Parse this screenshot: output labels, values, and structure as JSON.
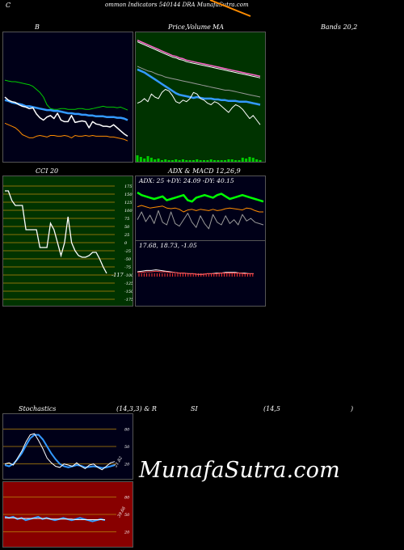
{
  "header": {
    "title_prefix": "C",
    "title_main": "ommon  Indicators 540144  DRA MunafaSutra.com",
    "accent_color": "#ff8c00"
  },
  "labels": {
    "bollinger_b": "B",
    "price_ma": "Price,",
    "volume": "Volume",
    "ma": "MA",
    "bands": "Bands 20,2",
    "cci": "CCI 20",
    "adx_macd": "ADX  & MACD 12,26,9",
    "stoch_left": "Stochastics",
    "stoch_mid": "(14,3,3) & R",
    "rsi": "SI",
    "rsi_period": "(14,5",
    "rsi_close": ")"
  },
  "watermark": "MunafaSutra.com",
  "chart_data": [
    {
      "id": "bollinger",
      "type": "line",
      "title": "B",
      "series": [
        {
          "color": "#00cc00",
          "values": [
            58,
            59,
            60,
            60,
            61,
            62,
            63,
            64,
            66,
            70,
            74,
            80,
            90,
            95,
            96,
            96,
            95,
            95,
            96,
            96,
            96,
            95,
            95,
            96,
            96,
            95,
            94,
            93,
            92,
            93,
            93,
            93,
            94,
            93,
            95,
            97
          ]
        },
        {
          "color": "#3399ff",
          "values": [
            84,
            85,
            87,
            88,
            89,
            90,
            92,
            92,
            93,
            94,
            95,
            96,
            97,
            97,
            98,
            98,
            99,
            100,
            101,
            101,
            102,
            102,
            103,
            103,
            104,
            104,
            105,
            105,
            105,
            106,
            106,
            106,
            107,
            107,
            108,
            110
          ]
        },
        {
          "color": "#ffffff",
          "values": [
            80,
            84,
            86,
            87,
            90,
            92,
            93,
            95,
            94,
            102,
            107,
            110,
            106,
            104,
            108,
            101,
            110,
            112,
            112,
            104,
            113,
            112,
            111,
            112,
            120,
            112,
            115,
            116,
            118,
            118,
            119,
            116,
            120,
            124,
            128,
            131
          ]
        },
        {
          "color": "#ff8c00",
          "values": [
            114,
            116,
            118,
            120,
            124,
            129,
            131,
            133,
            133,
            131,
            130,
            131,
            132,
            130,
            130,
            131,
            131,
            130,
            131,
            133,
            130,
            131,
            131,
            130,
            131,
            130,
            131,
            131,
            131,
            131,
            132,
            132,
            133,
            134,
            135,
            137
          ]
        }
      ]
    },
    {
      "id": "price_ma",
      "type": "line",
      "title": "Price, Volume, MA",
      "series": [
        {
          "color": "#ff66cc",
          "values": [
            6,
            8,
            10,
            12,
            14,
            16,
            18,
            20,
            22,
            24,
            26,
            27,
            29,
            30,
            32,
            33,
            34,
            35,
            36,
            37,
            38,
            39,
            40,
            41,
            42,
            43,
            44,
            45,
            46,
            47,
            48,
            49,
            50,
            51,
            52,
            53
          ]
        },
        {
          "color": "#ffffff",
          "values": [
            8,
            10,
            12,
            14,
            16,
            18,
            20,
            22,
            24,
            26,
            28,
            29,
            31,
            32,
            34,
            35,
            36,
            37,
            38,
            39,
            40,
            41,
            42,
            43,
            44,
            45,
            46,
            47,
            48,
            49,
            50,
            51,
            52,
            53,
            54,
            55
          ]
        },
        {
          "color": "#999999",
          "values": [
            40,
            42,
            44,
            46,
            47,
            49,
            51,
            52,
            54,
            55,
            56,
            57,
            58,
            59,
            60,
            61,
            62,
            63,
            64,
            65,
            66,
            67,
            68,
            69,
            70,
            71,
            71,
            72,
            73,
            74,
            75,
            76,
            77,
            78,
            79,
            80
          ]
        },
        {
          "color": "#3399ff",
          "values": [
            44,
            46,
            48,
            51,
            54,
            57,
            60,
            63,
            66,
            69,
            72,
            75,
            77,
            78,
            79,
            80,
            81,
            80,
            81,
            82,
            82,
            82,
            83,
            83,
            84,
            84,
            85,
            85,
            85,
            86,
            86,
            86,
            87,
            88,
            89,
            90
          ]
        },
        {
          "color": "#ffffff",
          "values": [
            88,
            86,
            82,
            86,
            76,
            80,
            82,
            74,
            70,
            72,
            78,
            86,
            88,
            84,
            86,
            82,
            74,
            76,
            82,
            84,
            88,
            90,
            86,
            88,
            92,
            96,
            100,
            94,
            90,
            92,
            96,
            102,
            108,
            104,
            110,
            116
          ]
        }
      ],
      "volume": [
        8,
        6,
        4,
        7,
        5,
        3,
        4,
        2,
        3,
        2,
        2,
        3,
        2,
        3,
        2,
        2,
        2,
        3,
        2,
        2,
        2,
        3,
        2,
        2,
        2,
        2,
        3,
        3,
        2,
        2,
        5,
        4,
        6,
        5,
        3,
        2
      ]
    },
    {
      "id": "cci",
      "type": "line",
      "title": "CCI 20",
      "yticks": [
        "175",
        "150",
        "125",
        "100",
        "75",
        "50",
        "25",
        "0",
        "-25",
        "-50",
        "-75",
        "-100",
        "-125",
        "-150",
        "-175"
      ],
      "yticks_positions": [
        175,
        150,
        125,
        100,
        75,
        50,
        25,
        0,
        -25,
        -50,
        -75,
        -100,
        -125,
        -150,
        -175
      ],
      "series": [
        {
          "color": "#ffffff",
          "values": [
            160,
            160,
            130,
            115,
            115,
            115,
            40,
            40,
            40,
            40,
            -15,
            -15,
            -15,
            60,
            40,
            0,
            -40,
            0,
            80,
            0,
            -25,
            -40,
            -45,
            -45,
            -40,
            -30,
            -30,
            -50,
            -75,
            -95
          ]
        }
      ],
      "last_value_label": "-117"
    },
    {
      "id": "adx",
      "type": "line",
      "title": "ADX & MACD 12,26,9",
      "summary_text": "ADX: 25  +DY: 24.09  -DY: 40.15",
      "series": [
        {
          "color": "#ff8c00",
          "values": [
            32,
            30,
            32,
            34,
            33,
            32,
            31,
            34,
            35,
            34,
            36,
            40,
            37,
            36,
            38,
            36,
            37,
            38,
            36,
            38,
            37,
            35,
            34,
            35,
            36,
            37,
            34,
            35,
            38,
            40,
            40
          ]
        },
        {
          "color": "#00ff00",
          "values": [
            10,
            14,
            16,
            18,
            20,
            18,
            16,
            22,
            20,
            18,
            16,
            14,
            22,
            24,
            18,
            16,
            14,
            16,
            18,
            14,
            12,
            16,
            20,
            18,
            16,
            14,
            16,
            18,
            20,
            22,
            24
          ]
        },
        {
          "color": "#999999",
          "values": [
            52,
            40,
            55,
            45,
            58,
            38,
            56,
            60,
            40,
            58,
            62,
            52,
            42,
            56,
            64,
            46,
            58,
            66,
            44,
            56,
            60,
            46,
            58,
            52,
            60,
            44,
            54,
            50,
            56,
            58,
            60
          ]
        }
      ]
    },
    {
      "id": "macd",
      "type": "line",
      "summary_text": "17.68,  18.73,  -1.05",
      "series": [
        {
          "color": "#ffffff",
          "values": [
            20,
            21,
            22,
            22,
            23,
            22,
            21,
            20,
            19,
            18,
            18,
            17,
            17,
            16,
            16,
            17,
            17,
            18,
            18,
            19,
            19,
            19,
            18,
            18,
            17,
            17
          ]
        },
        {
          "color": "#ff4444",
          "values": [
            19,
            19,
            20,
            20,
            21,
            20,
            20,
            19,
            19,
            18,
            18,
            17,
            17,
            16,
            16,
            17,
            17,
            17,
            18,
            18,
            18,
            18,
            18,
            17,
            17,
            17
          ]
        }
      ]
    },
    {
      "id": "stochastics",
      "type": "line",
      "title": "Stochastics (14,3,3)",
      "yticks": [
        "80",
        "50",
        "20"
      ],
      "yticks_positions": [
        80,
        50,
        20
      ],
      "series": [
        {
          "color": "#3399ff",
          "values": [
            18,
            16,
            20,
            28,
            38,
            52,
            64,
            70,
            70,
            62,
            50,
            38,
            28,
            20,
            16,
            14,
            16,
            18,
            17,
            14,
            15,
            16,
            15,
            13,
            14,
            16,
            18
          ]
        },
        {
          "color": "#ffffff",
          "values": [
            20,
            22,
            18,
            30,
            42,
            58,
            70,
            72,
            60,
            46,
            30,
            22,
            16,
            14,
            20,
            18,
            16,
            22,
            16,
            12,
            18,
            20,
            14,
            10,
            16,
            22,
            24
          ]
        }
      ],
      "last_value_label": "21.82"
    },
    {
      "id": "rsi",
      "type": "line",
      "title": "RSI (14,5)",
      "yticks": [
        "80",
        "50",
        "20"
      ],
      "yticks_positions": [
        80,
        50,
        20
      ],
      "series": [
        {
          "color": "#3399ff",
          "values": [
            46,
            44,
            46,
            42,
            44,
            40,
            42,
            44,
            46,
            42,
            44,
            42,
            40,
            42,
            44,
            42,
            40,
            42,
            44,
            42,
            40,
            38,
            40,
            42,
            40
          ]
        },
        {
          "color": "#ffffff",
          "values": [
            44,
            44,
            44,
            43,
            43,
            43,
            43,
            43,
            43,
            43,
            43,
            42,
            42,
            42,
            42,
            42,
            42,
            41,
            41,
            41,
            41,
            41,
            41,
            41,
            41
          ]
        }
      ],
      "last_value_label": "39.66"
    }
  ]
}
